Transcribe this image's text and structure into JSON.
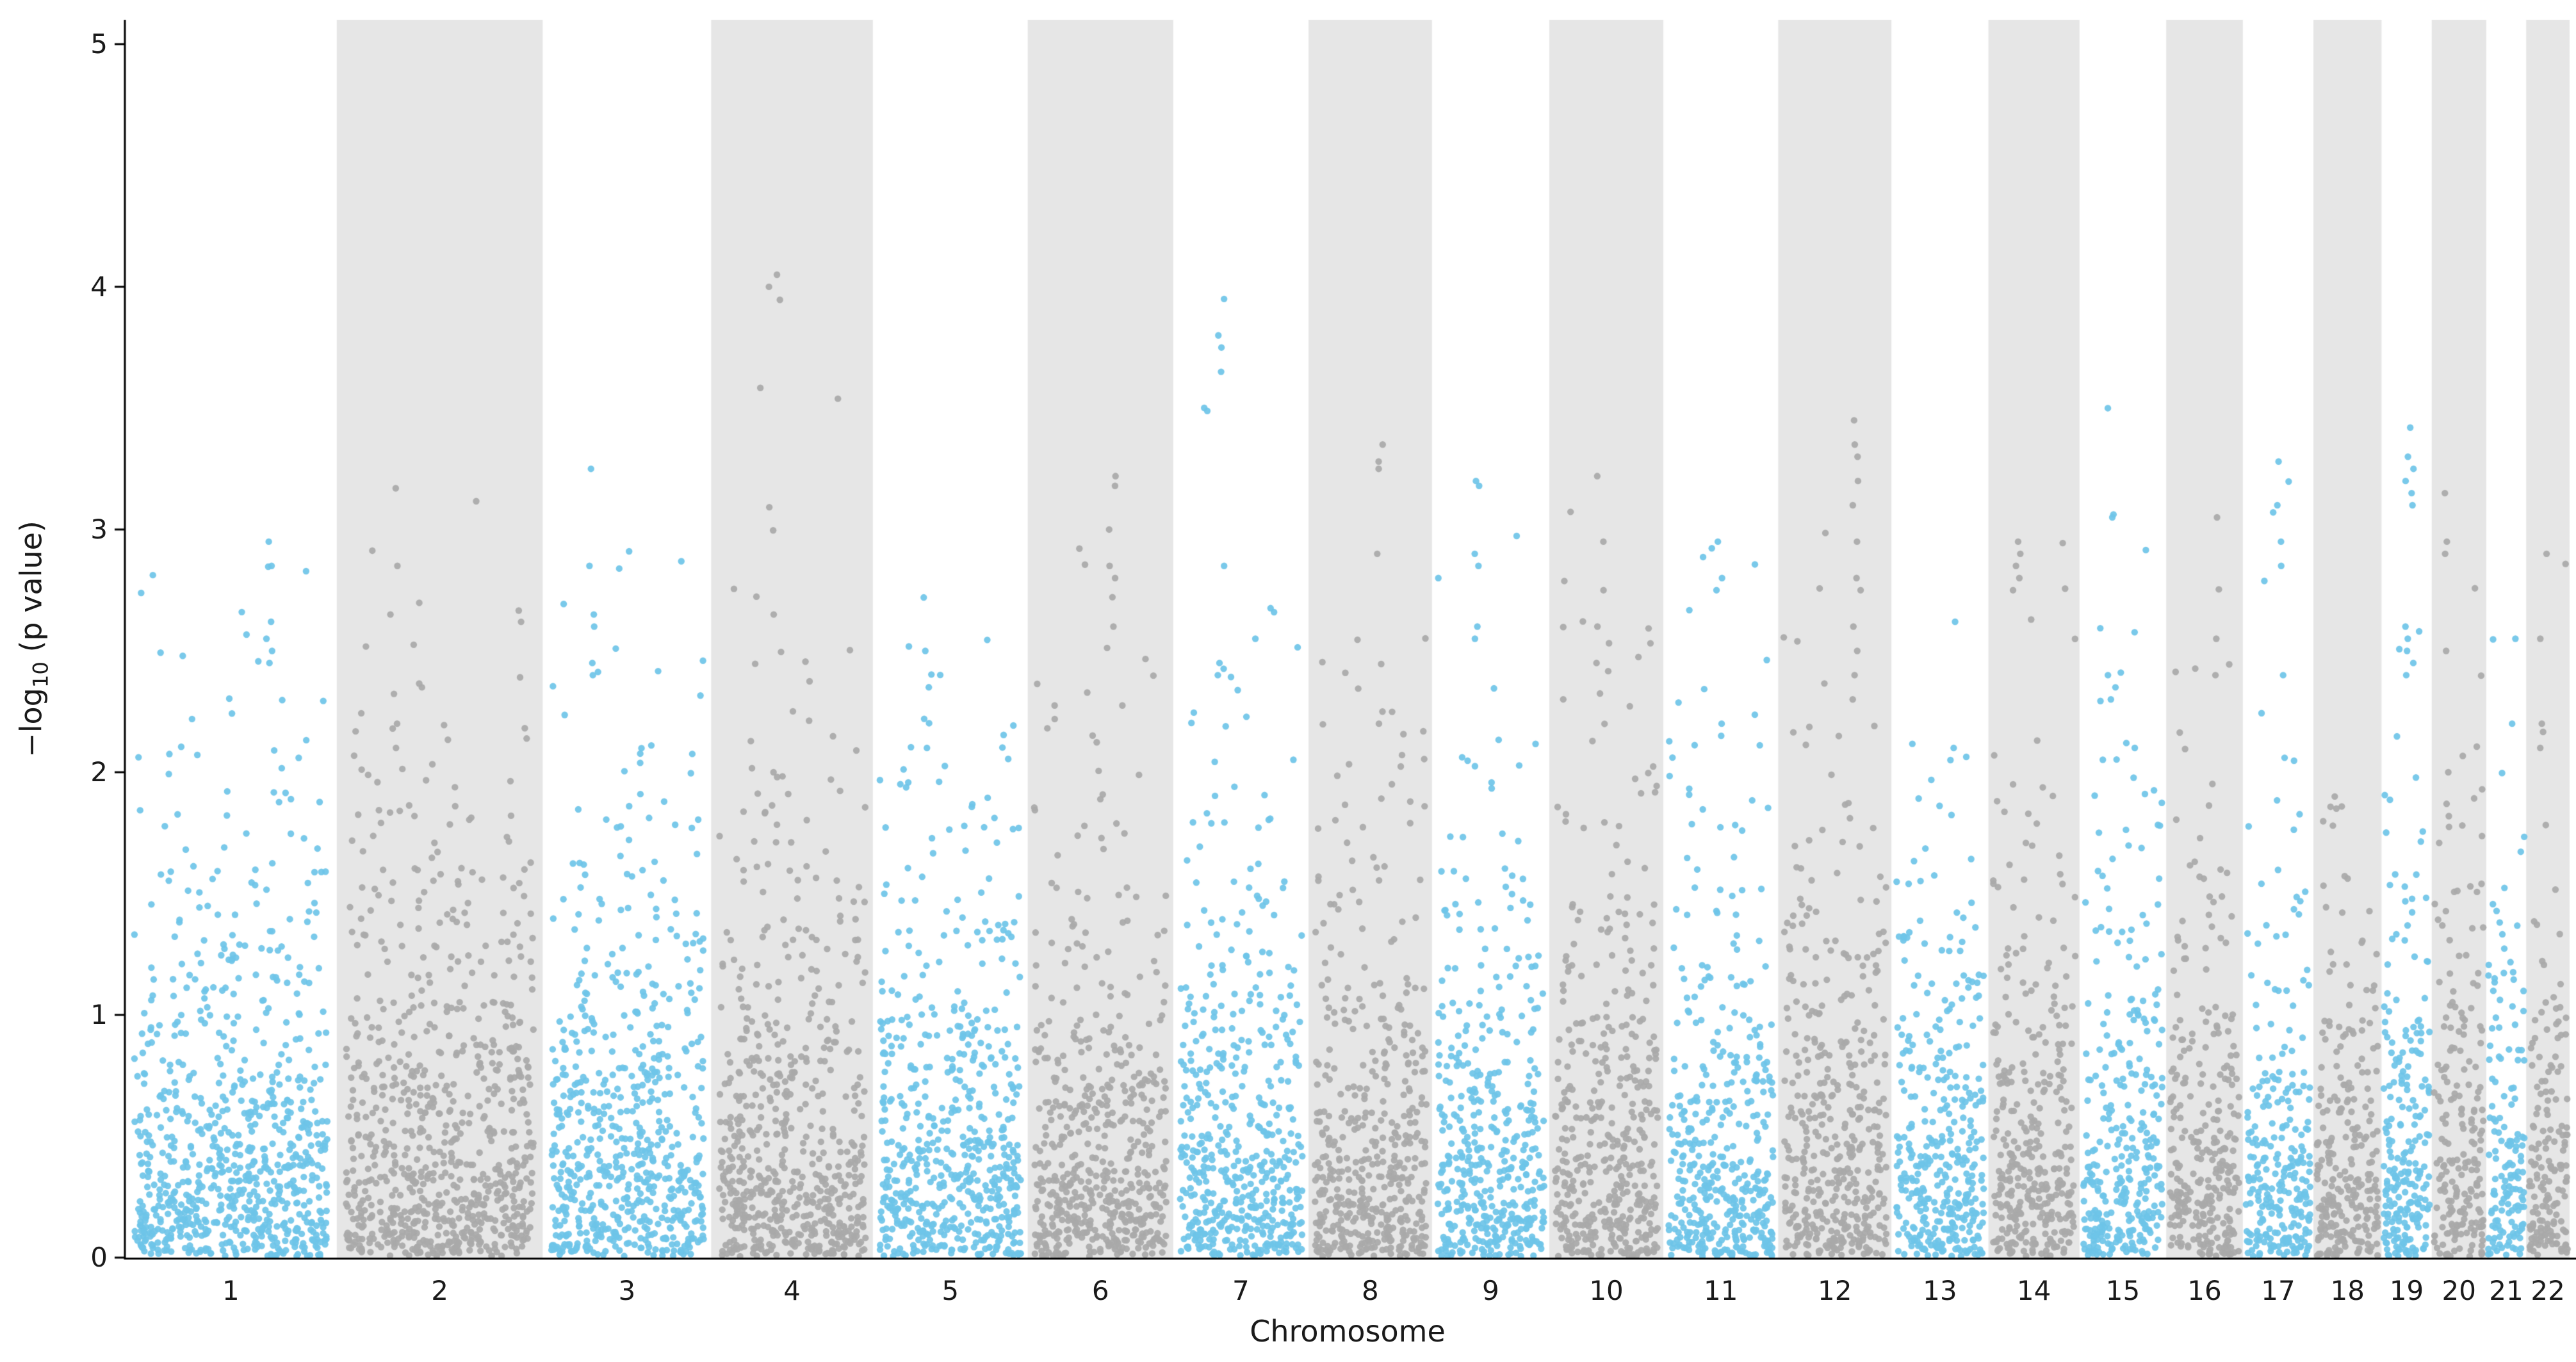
{
  "figure": {
    "ylabel_prefix": "−log",
    "ylabel_sub": "10",
    "ylabel_suffix": " (p value)",
    "xlabel": "Chromosome"
  },
  "chart_data": {
    "type": "scatter",
    "subtype": "manhattan",
    "title": "",
    "xlabel": "Chromosome",
    "ylabel": "−log10 (p value)",
    "ylim": [
      0,
      5.1
    ],
    "yticks": [
      0,
      1,
      2,
      3,
      4,
      5
    ],
    "grid": false,
    "legend": "none",
    "background_color": "#ffffff",
    "background_band_color": "#e6e6e6",
    "point_colors": {
      "odd": "#6ec4e8",
      "even": "#a9a9a9"
    },
    "axis_color": "#000000",
    "sim": {
      "seed": 42,
      "tail_scale": 1.27,
      "point_radius": 5.2,
      "point_alpha": 0.92,
      "band_padding_frac": 0.045
    },
    "chromosomes": [
      {
        "label": "1",
        "length_mb": 249,
        "n_points": 797,
        "max": 2.95,
        "peaks": [
          2.95,
          2.85,
          2.62,
          2.55,
          2.5,
          2.45
        ]
      },
      {
        "label": "2",
        "length_mb": 242,
        "n_points": 774,
        "max": 3.17,
        "peaks": [
          3.17,
          2.85,
          2.65,
          2.2,
          2.18,
          2.1
        ]
      },
      {
        "label": "3",
        "length_mb": 198,
        "n_points": 634,
        "max": 3.25,
        "peaks": [
          3.25,
          2.85,
          2.65,
          2.6,
          2.45,
          2.4
        ]
      },
      {
        "label": "4",
        "length_mb": 190,
        "n_points": 608,
        "max": 4.05,
        "peaks": [
          4.05,
          4.0,
          2.65,
          2.0,
          1.98
        ]
      },
      {
        "label": "5",
        "length_mb": 182,
        "n_points": 582,
        "max": 2.72,
        "peaks": [
          2.72,
          2.5,
          2.35,
          2.22,
          2.1
        ]
      },
      {
        "label": "6",
        "length_mb": 171,
        "n_points": 547,
        "max": 3.22,
        "peaks": [
          3.22,
          3.18,
          3.0,
          2.85,
          2.8,
          2.6
        ]
      },
      {
        "label": "7",
        "length_mb": 159,
        "n_points": 509,
        "max": 3.95,
        "peaks": [
          3.95,
          3.8,
          3.75,
          3.65,
          2.85,
          2.45,
          2.4
        ]
      },
      {
        "label": "8",
        "length_mb": 145,
        "n_points": 464,
        "max": 3.35,
        "peaks": [
          3.35,
          3.28,
          3.25,
          2.9,
          2.25,
          2.2
        ]
      },
      {
        "label": "9",
        "length_mb": 138,
        "n_points": 442,
        "max": 3.2,
        "peaks": [
          3.2,
          3.18,
          2.9,
          2.85,
          2.6,
          2.55
        ]
      },
      {
        "label": "10",
        "length_mb": 134,
        "n_points": 429,
        "max": 3.22,
        "peaks": [
          3.22,
          2.95,
          2.75,
          2.6,
          2.45
        ]
      },
      {
        "label": "11",
        "length_mb": 135,
        "n_points": 432,
        "max": 2.95,
        "peaks": [
          2.95,
          2.8,
          2.75,
          2.2,
          2.15
        ]
      },
      {
        "label": "12",
        "length_mb": 133,
        "n_points": 426,
        "max": 3.45,
        "peaks": [
          3.45,
          3.35,
          3.3,
          3.2,
          3.1,
          2.95,
          2.8,
          2.75,
          2.6,
          2.5,
          2.4,
          2.3
        ]
      },
      {
        "label": "13",
        "length_mb": 114,
        "n_points": 365,
        "max": 2.62,
        "peaks": [
          2.62,
          2.1,
          2.05
        ]
      },
      {
        "label": "14",
        "length_mb": 107,
        "n_points": 342,
        "max": 2.95,
        "peaks": [
          2.95,
          2.9,
          2.85,
          2.8,
          2.75,
          1.95
        ]
      },
      {
        "label": "15",
        "length_mb": 102,
        "n_points": 326,
        "max": 3.5,
        "peaks": [
          3.5,
          3.05,
          2.4,
          2.3
        ]
      },
      {
        "label": "16",
        "length_mb": 90,
        "n_points": 288,
        "max": 3.05,
        "peaks": [
          3.05,
          2.55,
          2.4
        ]
      },
      {
        "label": "17",
        "length_mb": 83,
        "n_points": 266,
        "max": 3.28,
        "peaks": [
          3.28,
          3.1,
          2.95,
          2.85,
          2.4
        ]
      },
      {
        "label": "18",
        "length_mb": 80,
        "n_points": 256,
        "max": 1.9,
        "peaks": [
          1.9,
          1.85,
          1.78
        ]
      },
      {
        "label": "19",
        "length_mb": 59,
        "n_points": 230,
        "max": 3.42,
        "peaks": [
          3.42,
          3.3,
          3.25,
          3.2,
          3.15,
          3.1,
          2.6,
          2.55,
          2.5,
          2.45,
          2.4
        ]
      },
      {
        "label": "20",
        "length_mb": 64,
        "n_points": 205,
        "max": 3.15,
        "peaks": [
          3.15,
          2.95,
          2.9,
          2.5,
          2.0
        ]
      },
      {
        "label": "21",
        "length_mb": 47,
        "n_points": 150,
        "max": 2.55,
        "peaks": [
          2.55,
          2.2
        ]
      },
      {
        "label": "22",
        "length_mb": 51,
        "n_points": 163,
        "max": 2.9,
        "peaks": [
          2.9,
          2.55,
          2.2,
          2.1
        ]
      }
    ]
  }
}
